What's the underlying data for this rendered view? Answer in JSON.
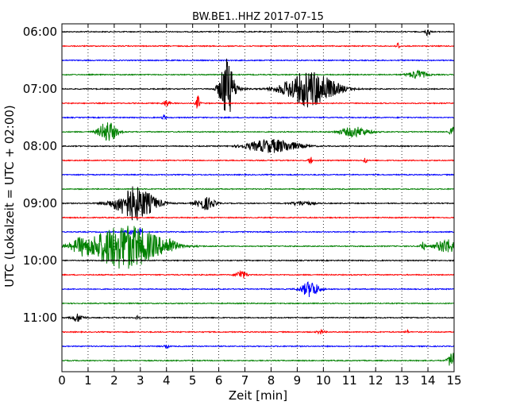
{
  "chart_data": {
    "type": "line",
    "title": "BW.BE1..HHZ 2017-07-15",
    "xlabel": "Zeit  [min]",
    "ylabel": "UTC (Lokalzeit = UTC + 02:00)",
    "xlim": [
      0,
      15
    ],
    "x_ticks": [
      "0",
      "1",
      "2",
      "3",
      "4",
      "5",
      "6",
      "7",
      "8",
      "9",
      "10",
      "11",
      "12",
      "13",
      "14",
      "15"
    ],
    "y_tick_labels": [
      "06:00",
      "07:00",
      "08:00",
      "09:00",
      "10:00",
      "11:00"
    ],
    "grid": true,
    "colors": [
      "#000000",
      "#ff0000",
      "#0000ff",
      "#008000"
    ],
    "series": [
      {
        "start": "06:00",
        "color": "#000000",
        "events": [
          {
            "x": 14.0,
            "amp": 0.35,
            "dur": 0.12
          }
        ]
      },
      {
        "start": "06:15",
        "color": "#ff0000",
        "events": [
          {
            "x": 12.85,
            "amp": 0.25,
            "dur": 0.1
          }
        ]
      },
      {
        "start": "06:30",
        "color": "#0000ff",
        "events": []
      },
      {
        "start": "06:45",
        "color": "#008000",
        "events": [
          {
            "x": 13.6,
            "amp": 0.3,
            "dur": 0.5
          }
        ]
      },
      {
        "start": "07:00",
        "color": "#000000",
        "events": [
          {
            "x": 6.3,
            "amp": 1.8,
            "dur": 0.35
          },
          {
            "x": 9.5,
            "amp": 1.3,
            "dur": 1.4
          },
          {
            "x": 6.4,
            "amp": 0.4,
            "dur": 0.6
          }
        ]
      },
      {
        "start": "07:15",
        "color": "#ff0000",
        "events": [
          {
            "x": 5.2,
            "amp": 0.5,
            "dur": 0.12
          },
          {
            "x": 4.0,
            "amp": 0.2,
            "dur": 0.2
          }
        ]
      },
      {
        "start": "07:30",
        "color": "#0000ff",
        "events": [
          {
            "x": 3.9,
            "amp": 0.2,
            "dur": 0.1
          }
        ]
      },
      {
        "start": "07:45",
        "color": "#008000",
        "events": [
          {
            "x": 1.75,
            "amp": 0.75,
            "dur": 0.5
          },
          {
            "x": 11.2,
            "amp": 0.35,
            "dur": 0.8
          },
          {
            "x": 14.95,
            "amp": 0.4,
            "dur": 0.15
          }
        ]
      },
      {
        "start": "08:00",
        "color": "#000000",
        "events": [
          {
            "x": 8.3,
            "amp": 0.4,
            "dur": 1.2
          },
          {
            "x": 7.5,
            "amp": 0.2,
            "dur": 1.0
          }
        ]
      },
      {
        "start": "08:15",
        "color": "#ff0000",
        "events": [
          {
            "x": 9.5,
            "amp": 0.3,
            "dur": 0.1
          },
          {
            "x": 11.6,
            "amp": 0.25,
            "dur": 0.08
          }
        ]
      },
      {
        "start": "08:30",
        "color": "#0000ff",
        "events": []
      },
      {
        "start": "08:45",
        "color": "#008000",
        "events": []
      },
      {
        "start": "09:00",
        "color": "#000000",
        "events": [
          {
            "x": 2.8,
            "amp": 1.2,
            "dur": 1.1
          },
          {
            "x": 5.5,
            "amp": 0.45,
            "dur": 0.5
          },
          {
            "x": 9.2,
            "amp": 0.15,
            "dur": 0.6
          }
        ]
      },
      {
        "start": "09:15",
        "color": "#ff0000",
        "events": []
      },
      {
        "start": "09:30",
        "color": "#0000ff",
        "events": [
          {
            "x": 3.0,
            "amp": 0.3,
            "dur": 0.08
          },
          {
            "x": 2.6,
            "amp": 0.15,
            "dur": 0.3
          }
        ]
      },
      {
        "start": "09:45",
        "color": "#008000",
        "events": [
          {
            "x": 2.4,
            "amp": 1.6,
            "dur": 2.0
          },
          {
            "x": 0.7,
            "amp": 0.35,
            "dur": 0.4
          },
          {
            "x": 4.1,
            "amp": 0.35,
            "dur": 0.3
          },
          {
            "x": 14.7,
            "amp": 0.5,
            "dur": 0.6
          },
          {
            "x": 13.8,
            "amp": 0.3,
            "dur": 0.15
          }
        ]
      },
      {
        "start": "10:00",
        "color": "#000000",
        "events": []
      },
      {
        "start": "10:15",
        "color": "#ff0000",
        "events": [
          {
            "x": 6.85,
            "amp": 0.3,
            "dur": 0.3
          }
        ]
      },
      {
        "start": "10:30",
        "color": "#0000ff",
        "events": [
          {
            "x": 9.5,
            "amp": 0.55,
            "dur": 0.5
          }
        ]
      },
      {
        "start": "10:45",
        "color": "#008000",
        "events": []
      },
      {
        "start": "11:00",
        "color": "#000000",
        "events": [
          {
            "x": 0.6,
            "amp": 0.3,
            "dur": 0.3
          },
          {
            "x": 2.9,
            "amp": 0.25,
            "dur": 0.08
          }
        ]
      },
      {
        "start": "11:15",
        "color": "#ff0000",
        "events": [
          {
            "x": 9.9,
            "amp": 0.15,
            "dur": 0.2
          },
          {
            "x": 13.2,
            "amp": 0.12,
            "dur": 0.1
          }
        ]
      },
      {
        "start": "11:30",
        "color": "#0000ff",
        "events": [
          {
            "x": 4.0,
            "amp": 0.12,
            "dur": 0.15
          }
        ]
      },
      {
        "start": "11:45",
        "color": "#008000",
        "events": [
          {
            "x": 14.95,
            "amp": 0.7,
            "dur": 0.25
          }
        ]
      }
    ]
  }
}
